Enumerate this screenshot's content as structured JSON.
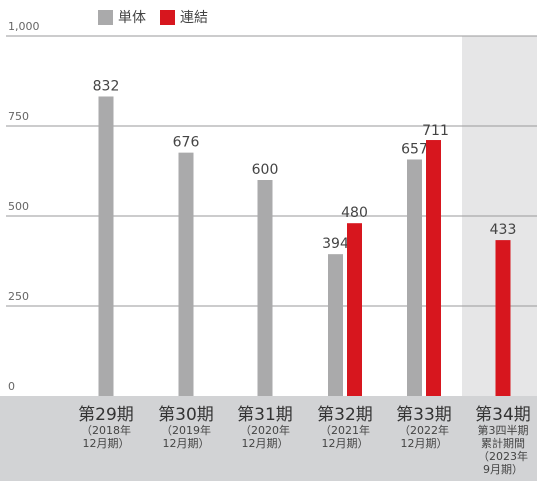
{
  "chart_data": {
    "type": "bar",
    "title": "",
    "xlabel": "",
    "ylabel": "",
    "ylim": [
      0,
      1000
    ],
    "y_ticks": [
      0,
      250,
      500,
      750,
      1000
    ],
    "y_tick_labels": [
      "0",
      "250",
      "500",
      "750",
      "1,000"
    ],
    "grid": true,
    "legend_position": "top-left",
    "categories": [
      {
        "label": "第29期",
        "sub": [
          "（2018年",
          "12月期）"
        ]
      },
      {
        "label": "第30期",
        "sub": [
          "（2019年",
          "12月期）"
        ]
      },
      {
        "label": "第31期",
        "sub": [
          "（2020年",
          "12月期）"
        ]
      },
      {
        "label": "第32期",
        "sub": [
          "（2021年",
          "12月期）"
        ]
      },
      {
        "label": "第33期",
        "sub": [
          "（2022年",
          "12月期）"
        ]
      },
      {
        "label": "第34期",
        "sub": [
          "第3四半期",
          "累計期間",
          "（2023年",
          "9月期）"
        ]
      }
    ],
    "series": [
      {
        "name": "単体",
        "color": "#aaaaab",
        "values": [
          832,
          676,
          600,
          394,
          657,
          null
        ]
      },
      {
        "name": "連結",
        "color": "#d7161e",
        "values": [
          null,
          null,
          null,
          480,
          711,
          433
        ]
      }
    ],
    "highlighted_category_index": 5,
    "highlight_color": "#e6e6e7",
    "axis_band_color": "#d2d3d5"
  }
}
